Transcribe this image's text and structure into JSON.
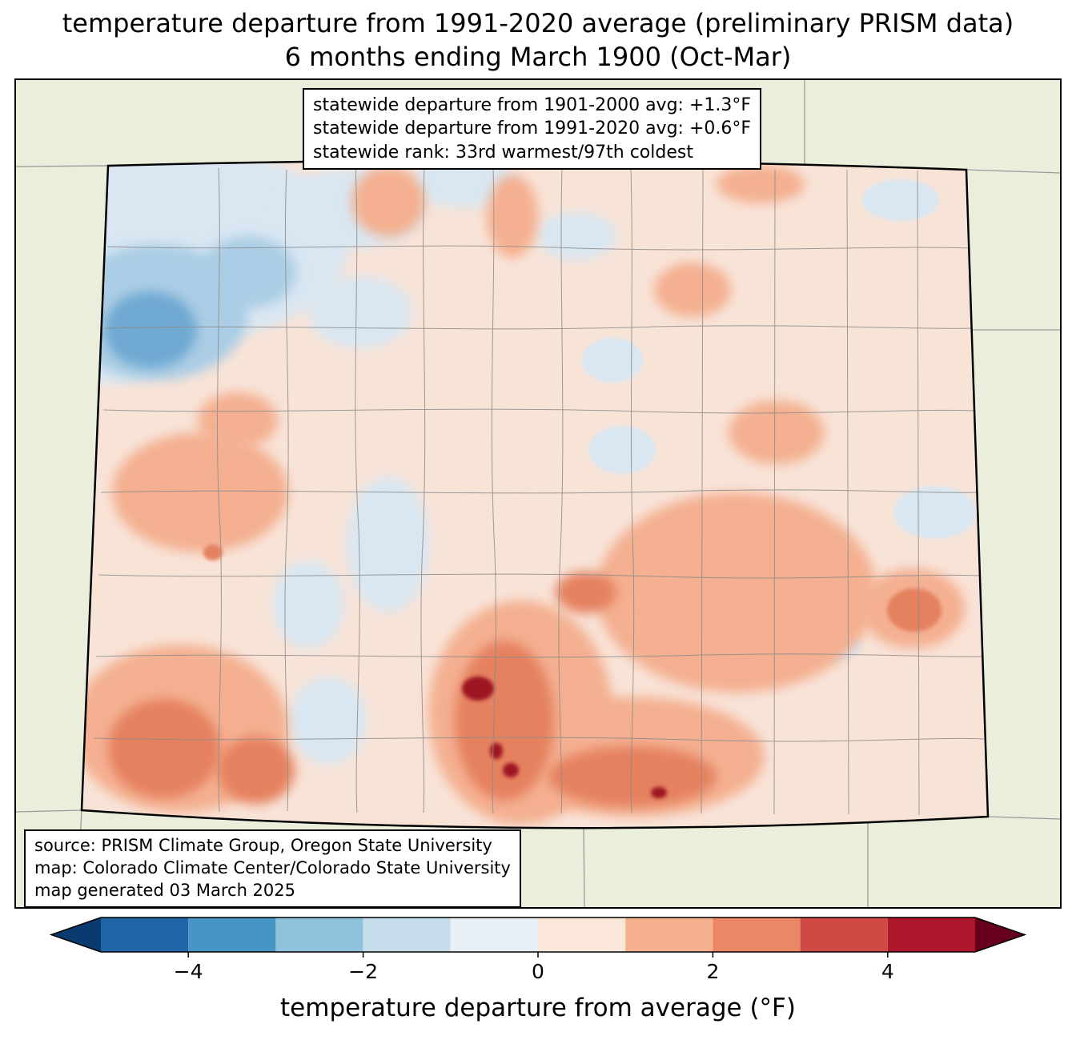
{
  "title": {
    "line1": "temperature departure from 1991-2020 average (preliminary PRISM data)",
    "line2": "6 months ending March 1900 (Oct-Mar)"
  },
  "stats_box": {
    "line1": "statewide departure from 1901-2000 avg: +1.3°F",
    "line2": "statewide departure from 1991-2020 avg: +0.6°F",
    "line3": "statewide rank: 33rd warmest/97th coldest"
  },
  "source_box": {
    "line1": "source: PRISM Climate Group, Oregon State University",
    "line2": "map: Colorado Climate Center/Colorado State University",
    "line3": "map generated 03 March 2025"
  },
  "colorbar": {
    "label": "temperature departure from average (°F)",
    "min": -5,
    "max": 5,
    "ticks": [
      {
        "value": -4,
        "label": "−4"
      },
      {
        "value": -2,
        "label": "−2"
      },
      {
        "value": 0,
        "label": "0"
      },
      {
        "value": 2,
        "label": "2"
      },
      {
        "value": 4,
        "label": "4"
      }
    ],
    "arrow_left_color": "#0a3b70",
    "arrow_right_color": "#67001f",
    "segments": [
      {
        "from": -5,
        "to": -4,
        "color": "#2065a8"
      },
      {
        "from": -4,
        "to": -3,
        "color": "#4695c4"
      },
      {
        "from": -3,
        "to": -2,
        "color": "#8fc2dd"
      },
      {
        "from": -2,
        "to": -1,
        "color": "#c6ddec"
      },
      {
        "from": -1,
        "to": 0,
        "color": "#e9f0f5"
      },
      {
        "from": 0,
        "to": 1,
        "color": "#fbe7d9"
      },
      {
        "from": 1,
        "to": 2,
        "color": "#f5b08d"
      },
      {
        "from": 2,
        "to": 3,
        "color": "#ec8765"
      },
      {
        "from": 3,
        "to": 4,
        "color": "#cf4a44"
      },
      {
        "from": 4,
        "to": 5,
        "color": "#ad162b"
      }
    ]
  },
  "map": {
    "colors": {
      "outstate": "#eaeedb",
      "base": "#f8e3d7",
      "pale_blue": "#d9e7f2",
      "light_blue": "#abcde5",
      "mid_blue": "#6fa9d2",
      "salmon": "#f4b091",
      "orange": "#e5815e",
      "dark_red": "#9e1322",
      "county_line": "#8b8b8b",
      "state_line": "#9a9a9a",
      "border": "#000000"
    }
  }
}
